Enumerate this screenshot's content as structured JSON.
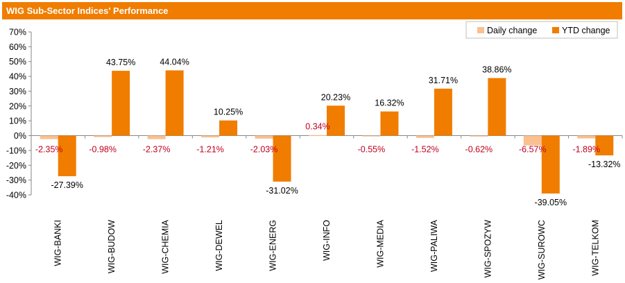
{
  "title": "WIG Sub-Sector Indices' Performance",
  "colors": {
    "daily": "#fac090",
    "ytd": "#f07d00",
    "daily_label": "#c0001e",
    "title_bg": "#f07d00"
  },
  "chart_data": {
    "type": "bar",
    "title": "WIG Sub-Sector Indices' Performance",
    "categories": [
      "WIG-BANKI",
      "WIG-BUDOW",
      "WIG-CHEMIA",
      "WIG-DEWEL",
      "WIG-ENERG",
      "WIG-INFO",
      "WIG-MEDIA",
      "WIG-PALIWA",
      "WIG-SPOZYW",
      "WIG-SUROWC",
      "WIG-TELKOM"
    ],
    "series": [
      {
        "name": "Daily change",
        "values": [
          -2.35,
          -0.98,
          -2.37,
          -1.21,
          -2.03,
          0.34,
          -0.55,
          -1.52,
          -0.62,
          -6.57,
          -1.89
        ],
        "labels": [
          "-2.35%",
          "-0.98%",
          "-2.37%",
          "-1.21%",
          "-2.03%",
          "0.34%",
          "-0.55%",
          "-1.52%",
          "-0.62%",
          "-6.57%",
          "-1.89%"
        ]
      },
      {
        "name": "YTD change",
        "values": [
          -27.39,
          43.75,
          44.04,
          10.25,
          -31.02,
          20.23,
          16.32,
          31.71,
          38.86,
          -39.05,
          -13.32
        ],
        "labels": [
          "-27.39%",
          "43.75%",
          "44.04%",
          "10.25%",
          "-31.02%",
          "20.23%",
          "16.32%",
          "31.71%",
          "38.86%",
          "-39.05%",
          "-13.32%"
        ]
      }
    ],
    "ylim": [
      -40,
      70
    ],
    "yticks": [
      "-40%",
      "-30%",
      "-20%",
      "-10%",
      "0%",
      "10%",
      "20%",
      "30%",
      "40%",
      "50%",
      "60%",
      "70%"
    ],
    "legend": "top-right",
    "grid": false
  }
}
